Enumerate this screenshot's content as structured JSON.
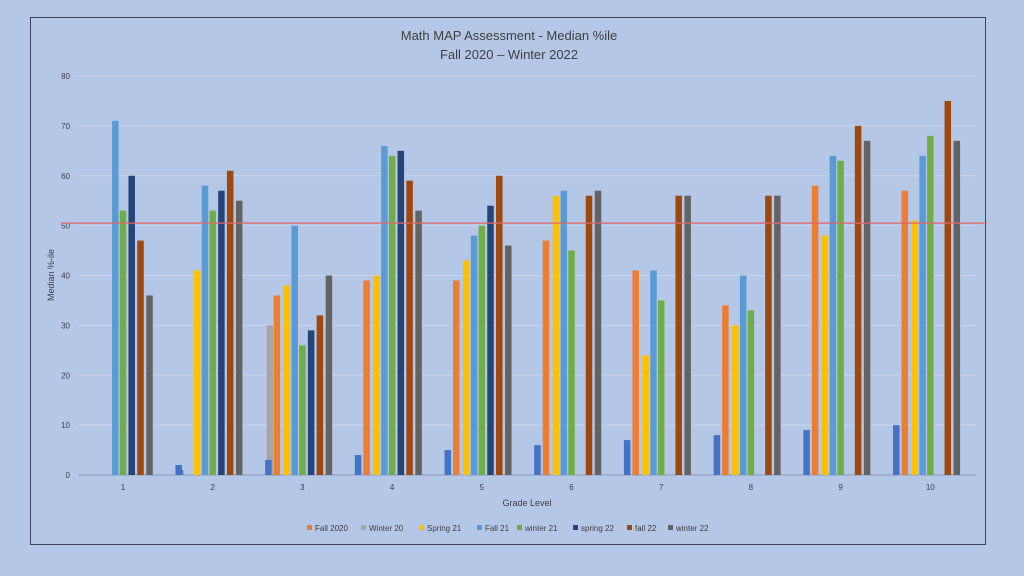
{
  "chart_data": {
    "type": "bar",
    "title": "Math MAP Assessment - Median %ile",
    "subtitle": "Fall 2020 – Winter 2022",
    "xlabel": "Grade Level",
    "ylabel": "Median %-ile",
    "ylim": [
      0,
      80
    ],
    "yticks": [
      0,
      10,
      20,
      30,
      40,
      50,
      60,
      70,
      80
    ],
    "grid": true,
    "legend_position": "bottom",
    "reference_line": {
      "value": 50.5,
      "color": "#e06666"
    },
    "categories": [
      "1",
      "2",
      "3",
      "4",
      "5",
      "6",
      "7",
      "8",
      "9",
      "10"
    ],
    "series": [
      {
        "name": "Fall 2020",
        "color": "#ed7d31",
        "values": [
          0,
          0,
          36,
          39,
          39,
          47,
          41,
          34,
          58,
          57
        ]
      },
      {
        "name": "Winter 20",
        "color": "#a5a5a5",
        "values": [
          0,
          0,
          30,
          0,
          0,
          0,
          0,
          0,
          0,
          0
        ]
      },
      {
        "name": "Spring 21",
        "color": "#ffc000",
        "values": [
          0,
          41,
          38,
          40,
          43,
          56,
          24,
          30,
          48,
          51
        ]
      },
      {
        "name": "Fall 21",
        "color": "#5b9bd5",
        "values": [
          71,
          58,
          50,
          66,
          48,
          57,
          41,
          40,
          64,
          64
        ]
      },
      {
        "name": "winter 21",
        "color": "#70ad47",
        "values": [
          53,
          53,
          26,
          64,
          50,
          45,
          35,
          33,
          63,
          68
        ]
      },
      {
        "name": "spring 22",
        "color": "#264478",
        "values": [
          60,
          57,
          29,
          65,
          54,
          0,
          0,
          0,
          0,
          0
        ]
      },
      {
        "name": "fall 22",
        "color": "#9e480e",
        "values": [
          47,
          61,
          32,
          59,
          60,
          56,
          56,
          56,
          70,
          75
        ]
      },
      {
        "name": "winter 22",
        "color": "#636363",
        "values": [
          36,
          55,
          40,
          53,
          46,
          57,
          56,
          56,
          67,
          67
        ]
      }
    ],
    "extra_series": {
      "color": "#4472c4",
      "values": [
        1,
        2,
        3,
        4,
        5,
        6,
        7,
        8,
        9,
        10
      ]
    }
  }
}
